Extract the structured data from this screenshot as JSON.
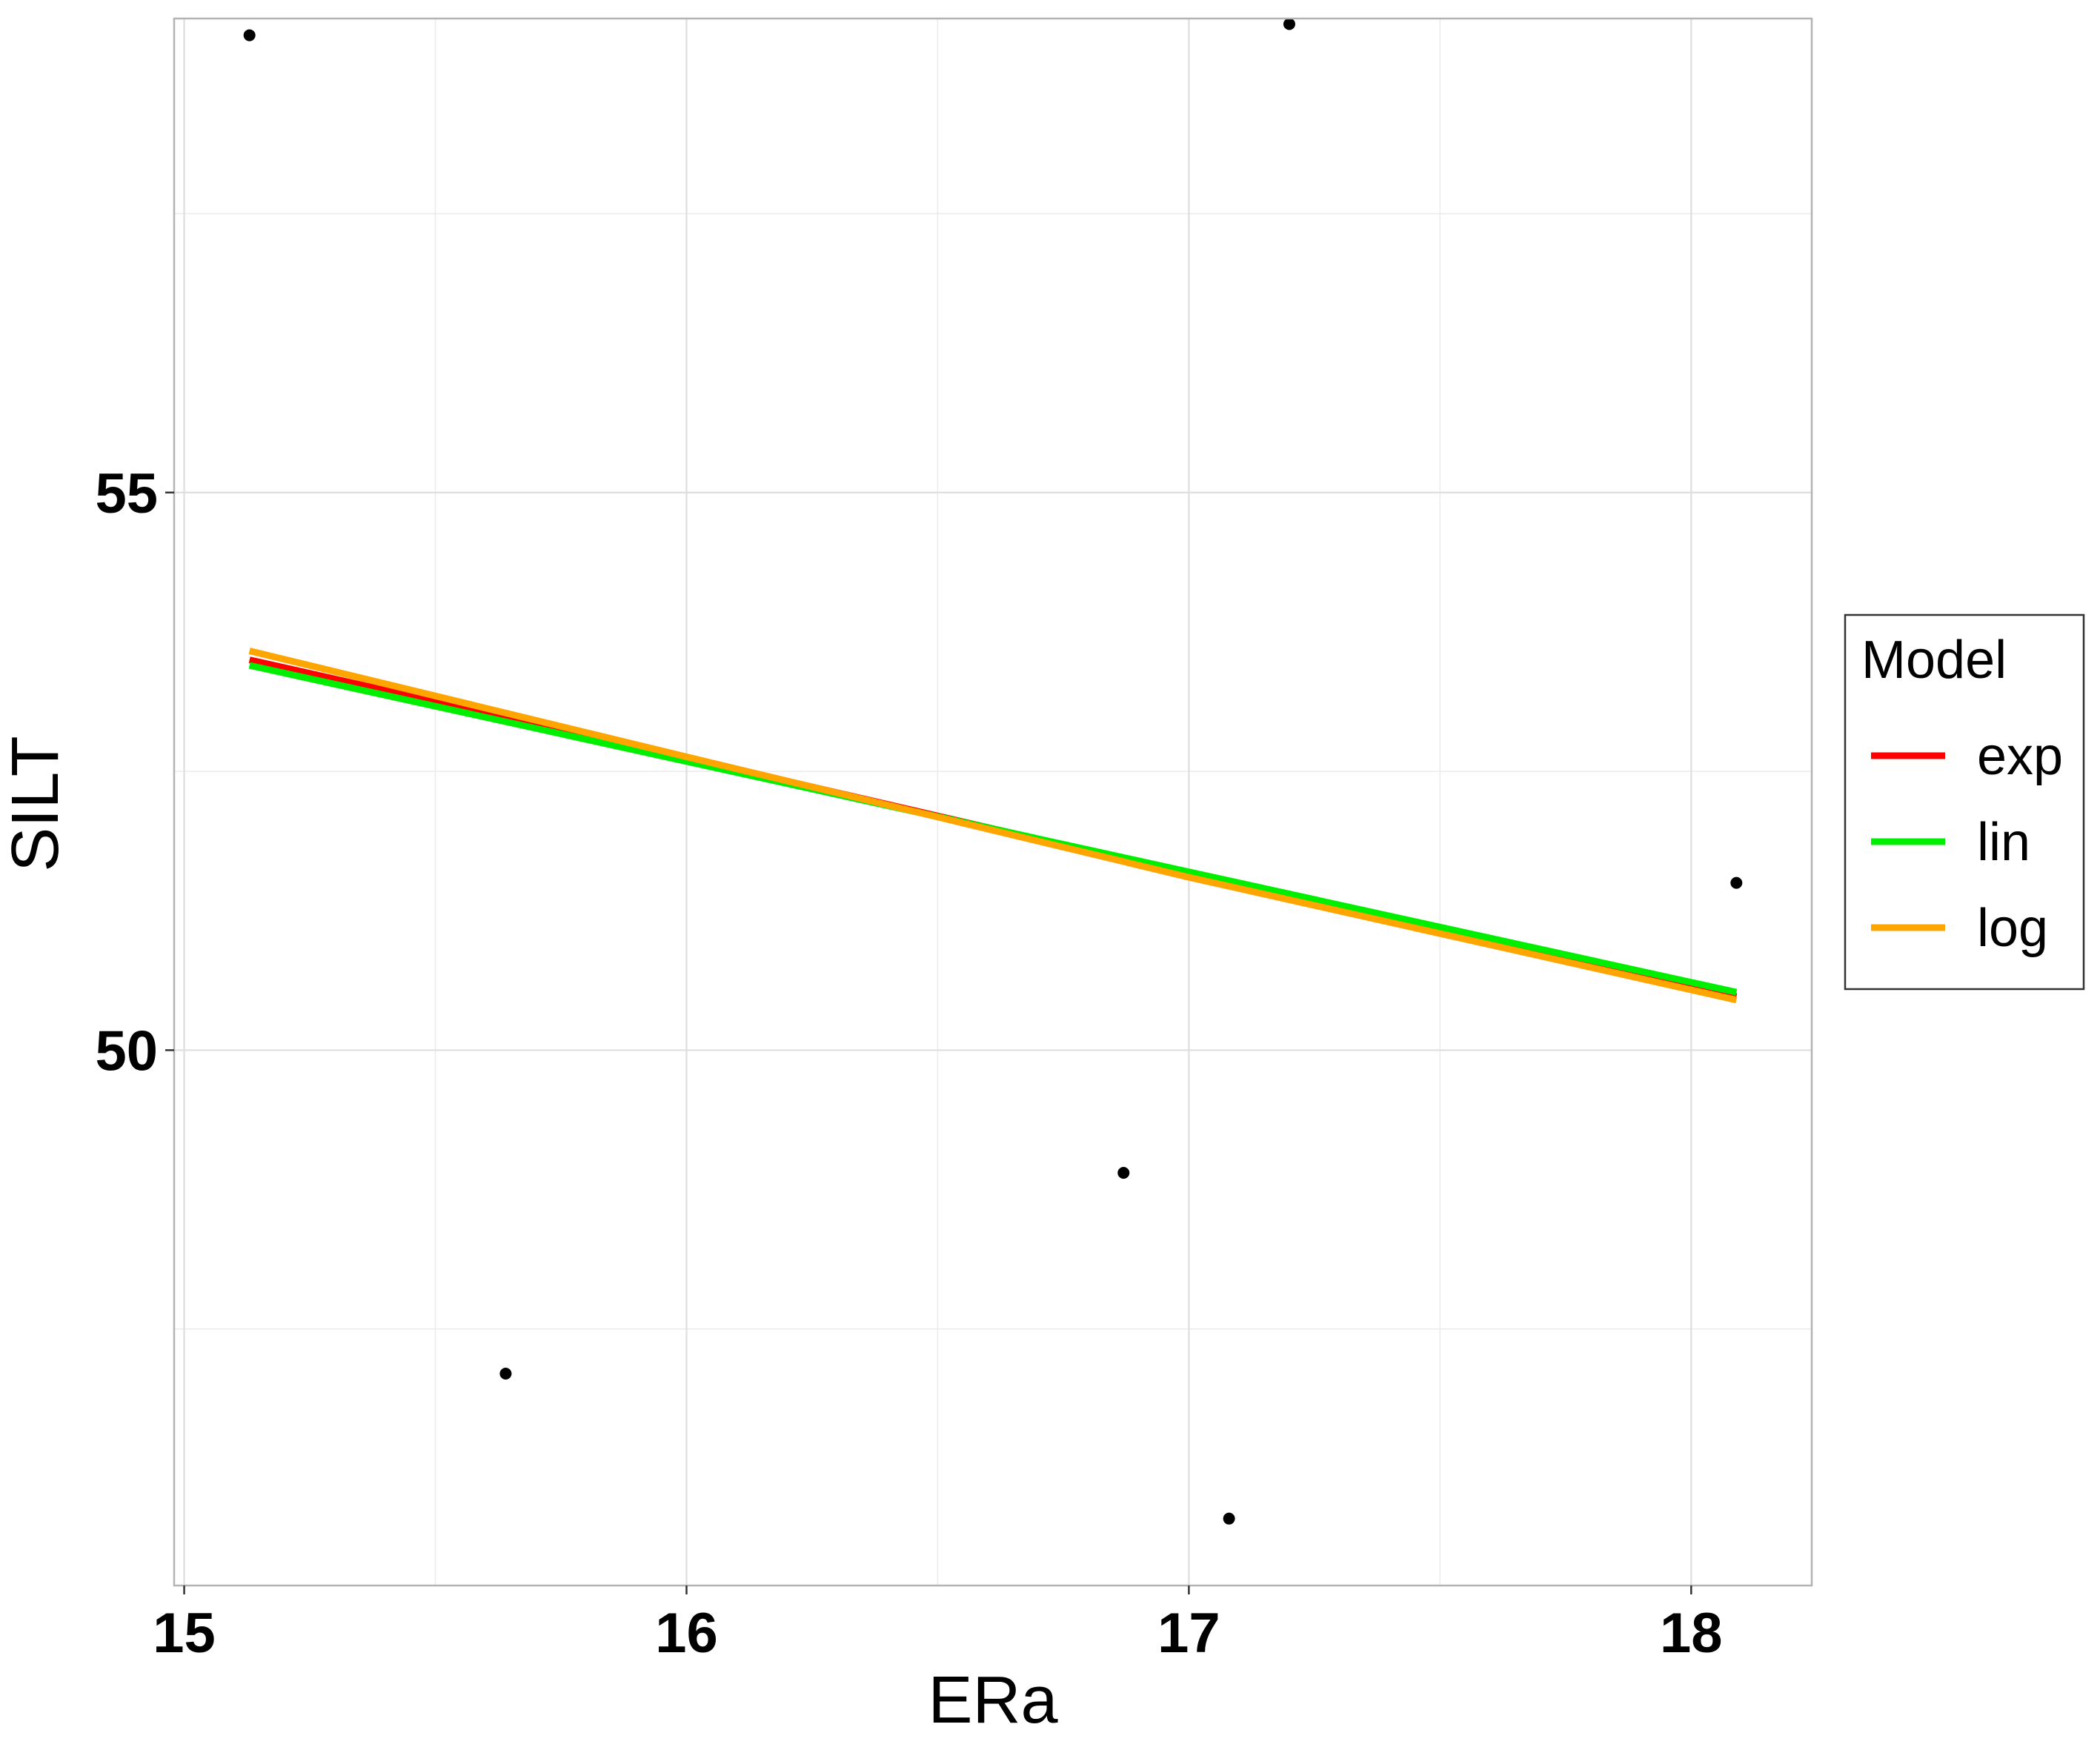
{
  "chart_data": {
    "type": "scatter",
    "xlabel": "ERa",
    "ylabel": "SILT",
    "xlim": [
      14.98,
      18.24
    ],
    "ylim": [
      45.2,
      59.25
    ],
    "x_ticks": [
      15,
      16,
      17,
      18
    ],
    "x_tick_labels": [
      "15",
      "16",
      "17",
      "18"
    ],
    "y_ticks": [
      50,
      55
    ],
    "y_tick_labels": [
      "50",
      "55"
    ],
    "x_minor_grid": [
      15.5,
      16.5,
      17.5
    ],
    "y_minor_grid": [
      47.5,
      52.5,
      57.5
    ],
    "grid": true,
    "points": [
      {
        "x": 15.13,
        "y": 59.1
      },
      {
        "x": 15.64,
        "y": 47.1
      },
      {
        "x": 16.87,
        "y": 48.9
      },
      {
        "x": 17.08,
        "y": 45.8
      },
      {
        "x": 17.2,
        "y": 59.2
      },
      {
        "x": 18.09,
        "y": 51.5
      }
    ],
    "point_color": "#000000",
    "legend": {
      "title": "Model",
      "placement": "right"
    },
    "series": [
      {
        "name": "exp",
        "color": "#ff0000",
        "x": [
          15.13,
          16.0,
          17.0,
          18.09
        ],
        "y": [
          53.5,
          52.62,
          51.58,
          50.48
        ]
      },
      {
        "name": "lin",
        "color": "#00ee00",
        "x": [
          15.13,
          18.09
        ],
        "y": [
          53.45,
          50.52
        ]
      },
      {
        "name": "log",
        "color": "#ffa500",
        "x": [
          15.13,
          16.0,
          17.0,
          18.09
        ],
        "y": [
          53.58,
          52.63,
          51.55,
          50.45
        ]
      }
    ]
  }
}
